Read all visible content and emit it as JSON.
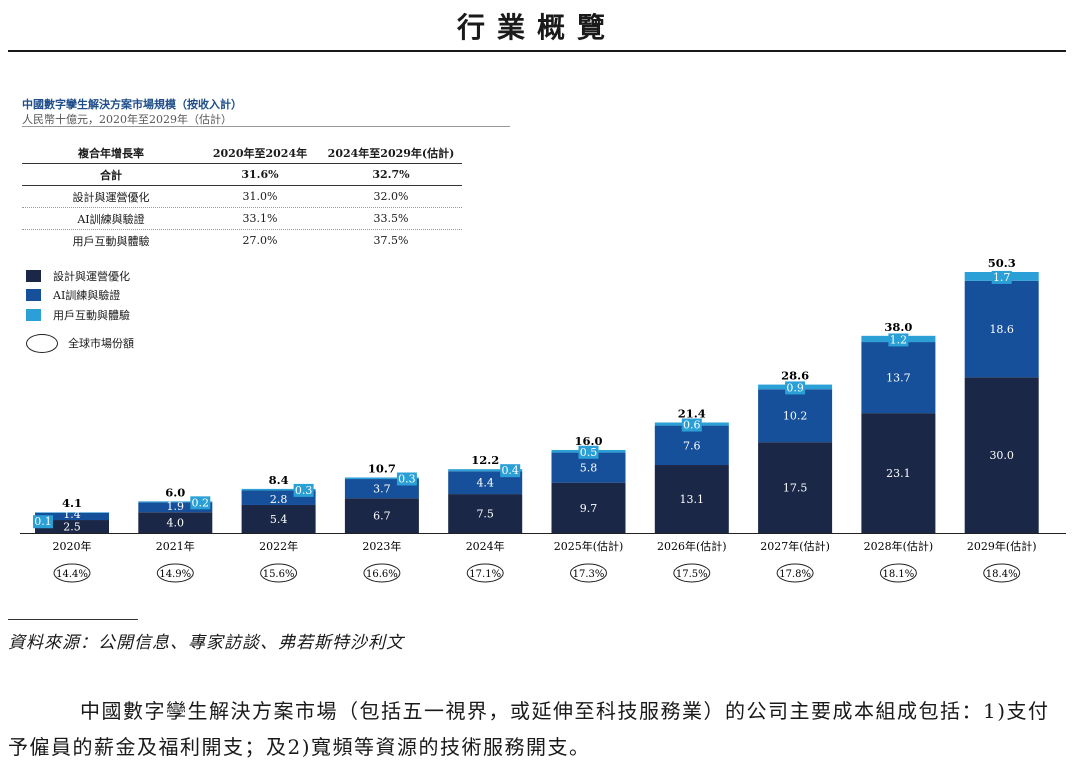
{
  "header": {
    "title": "行業概覽"
  },
  "chart_data": {
    "type": "bar",
    "stacked": true,
    "title": "中國數字孿生解決方案市場規模（按收入計）",
    "subtitle": "人民幣十億元，2020年至2029年（估計）",
    "categories": [
      "2020年",
      "2021年",
      "2022年",
      "2023年",
      "2024年",
      "2025年(估計)",
      "2026年(估計)",
      "2027年(估計)",
      "2028年(估計)",
      "2029年(估計)"
    ],
    "series": [
      {
        "name": "設計與運營優化",
        "color": "#1b2747",
        "values": [
          2.5,
          4.0,
          5.4,
          6.7,
          7.5,
          9.7,
          13.1,
          17.5,
          23.1,
          30.0
        ],
        "labels": [
          "2.5",
          "4.0",
          "5.4",
          "6.7",
          "7.5",
          "9.7",
          "13.1",
          "17.5",
          "23.1",
          "30.0"
        ]
      },
      {
        "name": "AI訓練與驗證",
        "color": "#17509a",
        "values": [
          1.4,
          1.9,
          2.8,
          3.7,
          4.4,
          5.8,
          7.6,
          10.2,
          13.7,
          18.6
        ],
        "labels": [
          "1.4",
          "1.9",
          "2.8",
          "3.7",
          "4.4",
          "5.8",
          "7.6",
          "10.2",
          "13.7",
          "18.6"
        ]
      },
      {
        "name": "用戶互動與體驗",
        "color": "#2aa0d6",
        "values": [
          0.1,
          0.2,
          0.3,
          0.3,
          0.4,
          0.5,
          0.6,
          0.9,
          1.2,
          1.7
        ],
        "labels": [
          "0.1",
          "0.2",
          "0.3",
          "0.3",
          "0.4",
          "0.5",
          "0.6",
          "0.9",
          "1.2",
          "1.7"
        ]
      }
    ],
    "totals": [
      "4.1",
      "6.0",
      "8.4",
      "10.7",
      "12.2",
      "16.0",
      "21.4",
      "28.6",
      "38.0",
      "50.3"
    ],
    "global_share": [
      "14.4%",
      "14.9%",
      "15.6%",
      "16.6%",
      "17.1%",
      "17.3%",
      "17.5%",
      "17.8%",
      "18.1%",
      "18.4%"
    ],
    "ylim": [
      0,
      50.3
    ],
    "legend_oval_label": "全球市場份額",
    "cagr_table": {
      "headers": [
        "複合年增長率",
        "2020年至2024年",
        "2024年至2029年(估計)"
      ],
      "rows": [
        [
          "合計",
          "31.6%",
          "32.7%"
        ],
        [
          "設計與運營優化",
          "31.0%",
          "32.0%"
        ],
        [
          "AI訓練與驗證",
          "33.1%",
          "33.5%"
        ],
        [
          "用戶互動與體驗",
          "27.0%",
          "37.5%"
        ]
      ]
    }
  },
  "source": "資料來源：公開信息、專家訪談、弗若斯特沙利文",
  "paragraph": "中國數字孿生解決方案市場（包括五一視界，或延伸至科技服務業）的公司主要成本組成包括：1)支付予僱員的薪金及福利開支；及2)寬頻等資源的技術服務開支。"
}
